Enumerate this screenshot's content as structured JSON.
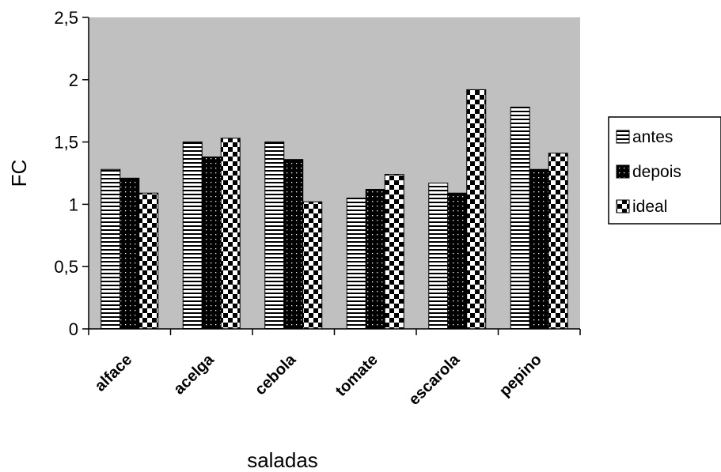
{
  "chart_data": {
    "type": "bar",
    "xlabel": "saladas",
    "ylabel": "FC",
    "ylim": [
      0,
      2.5
    ],
    "yticks": [
      "0",
      "0,5",
      "1",
      "1,5",
      "2",
      "2,5"
    ],
    "ytick_values": [
      0,
      0.5,
      1,
      1.5,
      2,
      2.5
    ],
    "categories": [
      "alface",
      "acelga",
      "cebola",
      "tomate",
      "escarola",
      "pepino"
    ],
    "series": [
      {
        "name": "antes",
        "values": [
          1.28,
          1.5,
          1.5,
          1.05,
          1.17,
          1.78
        ]
      },
      {
        "name": "depois",
        "values": [
          1.21,
          1.38,
          1.36,
          1.12,
          1.09,
          1.28
        ]
      },
      {
        "name": "ideal",
        "values": [
          1.09,
          1.53,
          1.02,
          1.24,
          1.92,
          1.41
        ]
      }
    ],
    "grid": false,
    "legend_position": "right",
    "colors": {
      "plot_background": "#c0c0c0",
      "bar_fill": "#ffffff",
      "pattern": "#000000"
    }
  }
}
